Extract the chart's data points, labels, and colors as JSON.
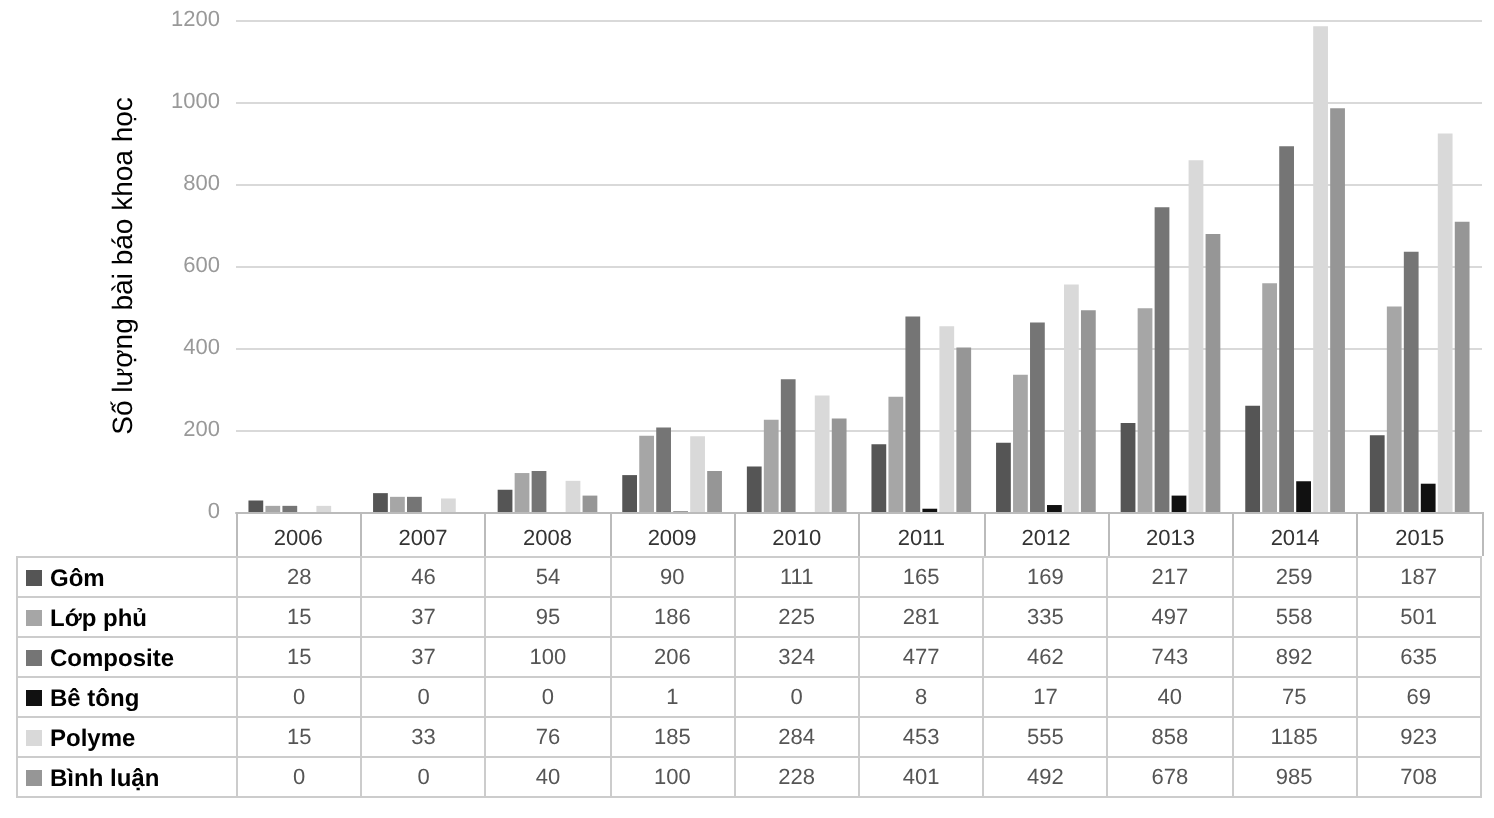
{
  "chart_data": {
    "type": "bar",
    "ylabel": "Số lượng bài báo khoa học",
    "categories": [
      "2006",
      "2007",
      "2008",
      "2009",
      "2010",
      "2011",
      "2012",
      "2013",
      "2014",
      "2015"
    ],
    "ylim": [
      0,
      1200
    ],
    "yticks": [
      0,
      200,
      400,
      600,
      800,
      1000,
      1200
    ],
    "grid": "y",
    "legend": "bottom",
    "data_labels": true,
    "series": [
      {
        "name": "Gôm",
        "color": "#555555",
        "values": [
          28,
          46,
          54,
          90,
          111,
          165,
          169,
          217,
          259,
          187
        ]
      },
      {
        "name": "Lớp phủ",
        "color": "#a6a6a6",
        "values": [
          15,
          37,
          95,
          186,
          225,
          281,
          335,
          497,
          558,
          501
        ]
      },
      {
        "name": "Composite",
        "color": "#757575",
        "values": [
          15,
          37,
          100,
          206,
          324,
          477,
          462,
          743,
          892,
          635
        ]
      },
      {
        "name": "Bê tông",
        "color": "#111111",
        "values": [
          0,
          0,
          0,
          1,
          0,
          8,
          17,
          40,
          75,
          69
        ]
      },
      {
        "name": "Polyme",
        "color": "#d9d9d9",
        "values": [
          15,
          33,
          76,
          185,
          284,
          453,
          555,
          858,
          1185,
          923
        ]
      },
      {
        "name": "Bình luận",
        "color": "#969696",
        "values": [
          0,
          0,
          40,
          100,
          228,
          401,
          492,
          678,
          985,
          708
        ]
      }
    ]
  }
}
